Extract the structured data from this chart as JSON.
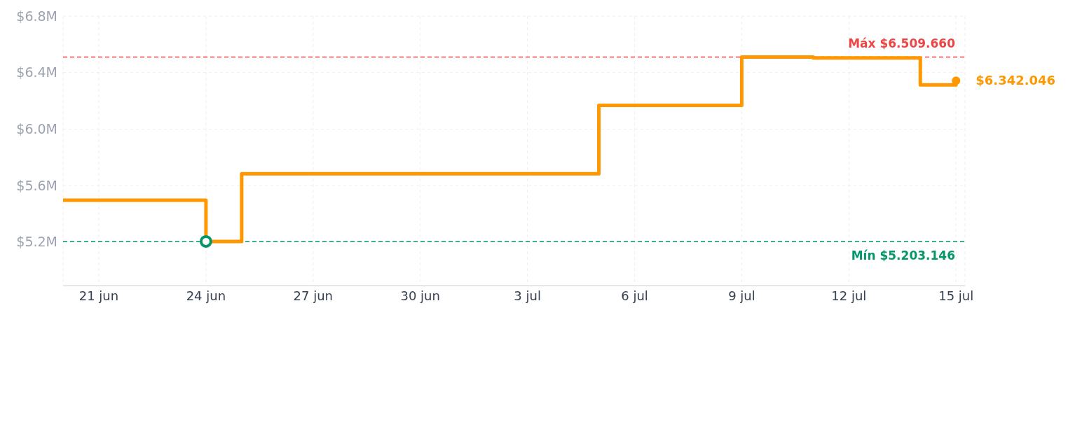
{
  "chart_data": {
    "type": "step",
    "x": [
      "--06-20",
      "--06-24",
      "--06-25",
      "--07-05",
      "--07-09",
      "--07-11",
      "--07-14",
      "--07-15"
    ],
    "series": [
      {
        "color": "#ff9800",
        "values": [
          5495000,
          5203146,
          5682000,
          6168000,
          6509660,
          6503000,
          6313000,
          6342046
        ],
        "value_labels": [
          null,
          null,
          null,
          null,
          null,
          null,
          null,
          "$6.342.046"
        ]
      }
    ],
    "xlim": [
      "--06-20",
      "--07-15T06:00"
    ],
    "xticks": [
      {
        "value": "--06-21",
        "label": "21 jun"
      },
      {
        "value": "--06-24",
        "label": "24 jun"
      },
      {
        "value": "--06-27",
        "label": "27 jun"
      },
      {
        "value": "--06-30",
        "label": "30 jun"
      },
      {
        "value": "--07-03",
        "label": "3 jul"
      },
      {
        "value": "--07-06",
        "label": "6 jul"
      },
      {
        "value": "--07-09",
        "label": "9 jul"
      },
      {
        "value": "--07-12",
        "label": "12 jul"
      },
      {
        "value": "--07-15",
        "label": "15 jul"
      }
    ],
    "ylim": [
      4890000,
      6800000
    ],
    "yticks": [
      {
        "value": 5200000,
        "label": "$5.2M"
      },
      {
        "value": 5600000,
        "label": "$5.6M"
      },
      {
        "value": 6000000,
        "label": "$6.0M"
      },
      {
        "value": 6400000,
        "label": "$6.4M"
      },
      {
        "value": 6800000,
        "label": "$6.8M"
      }
    ],
    "ref_lines": [
      {
        "axis": "y",
        "value": 6509660,
        "label": "Máx $6.509.660",
        "color": "#ef4444",
        "line_style": "dashed"
      },
      {
        "axis": "y",
        "value": 5203146,
        "label": "Mín $5.203.146",
        "color": "#059669",
        "line_style": "dashed"
      }
    ],
    "grid": true,
    "marker": "none",
    "line_style": "solid"
  }
}
